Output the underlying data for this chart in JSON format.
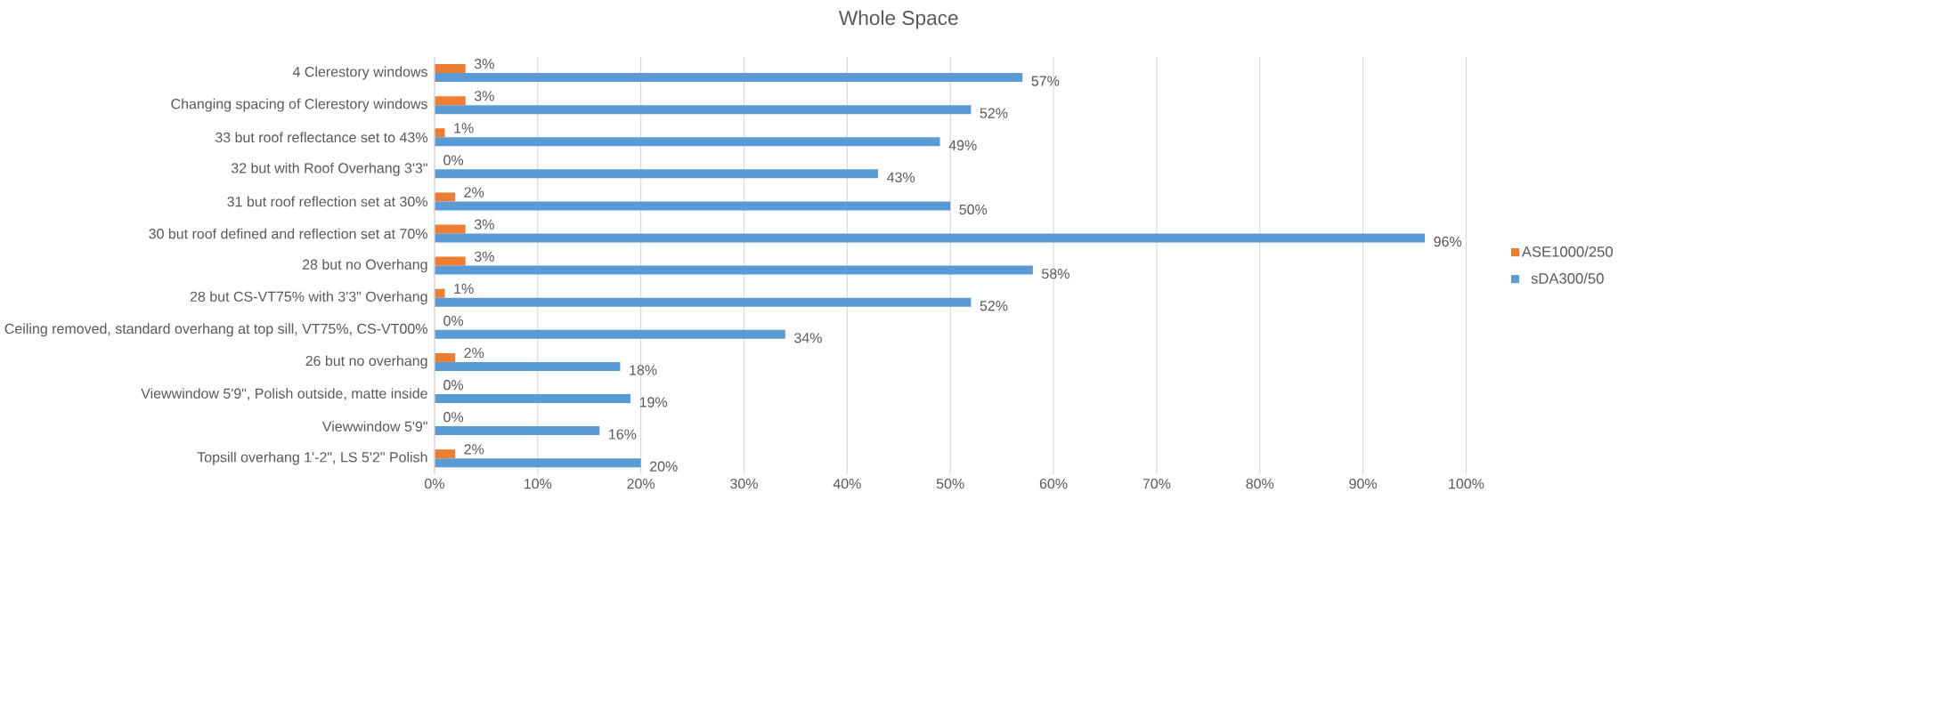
{
  "chart_data": {
    "type": "bar",
    "orientation": "horizontal",
    "title": "Whole Space",
    "categories": [
      "4 Clerestory windows",
      "Changing spacing of Clerestory windows",
      "33 but roof reflectance set to 43%",
      "32 but with Roof Overhang 3'3\"",
      "31 but roof reflection set at 30%",
      "30 but roof defined and reflection set at 70%",
      "28 but no Overhang",
      "28 but CS-VT75% with 3'3\" Overhang",
      "Ceiling removed, standard overhang at top sill, VT75%, CS-VT00%",
      "26 but no overhang",
      "Viewwindow 5'9\", Polish outside, matte inside",
      "Viewwindow 5'9\"",
      "Topsill overhang 1'-2\", LS 5'2\" Polish"
    ],
    "series": [
      {
        "name": "ASE1000/250",
        "color": "#ed7d31",
        "values": [
          3,
          3,
          1,
          0,
          2,
          3,
          3,
          1,
          0,
          2,
          0,
          0,
          2
        ],
        "value_labels": [
          "3%",
          "3%",
          "1%",
          "0%",
          "2%",
          "3%",
          "3%",
          "1%",
          "0%",
          "2%",
          "0%",
          "0%",
          "2%"
        ]
      },
      {
        "name": "sDA300/50",
        "color": "#5b9bd5",
        "values": [
          57,
          52,
          49,
          43,
          50,
          96,
          58,
          52,
          34,
          18,
          19,
          16,
          20
        ],
        "value_labels": [
          "57%",
          "52%",
          "49%",
          "43%",
          "50%",
          "96%",
          "58%",
          "52%",
          "34%",
          "18%",
          "19%",
          "16%",
          "20%"
        ]
      }
    ],
    "xlim": [
      0,
      100
    ],
    "xticks": [
      {
        "value": 0,
        "label": "0%"
      },
      {
        "value": 10,
        "label": "10%"
      },
      {
        "value": 20,
        "label": "20%"
      },
      {
        "value": 30,
        "label": "30%"
      },
      {
        "value": 40,
        "label": "40%"
      },
      {
        "value": 50,
        "label": "50%"
      },
      {
        "value": 60,
        "label": "60%"
      },
      {
        "value": 70,
        "label": "70%"
      },
      {
        "value": 80,
        "label": "80%"
      },
      {
        "value": 90,
        "label": "90%"
      },
      {
        "value": 100,
        "label": "100%"
      }
    ],
    "grid": "x",
    "legend": "right"
  }
}
